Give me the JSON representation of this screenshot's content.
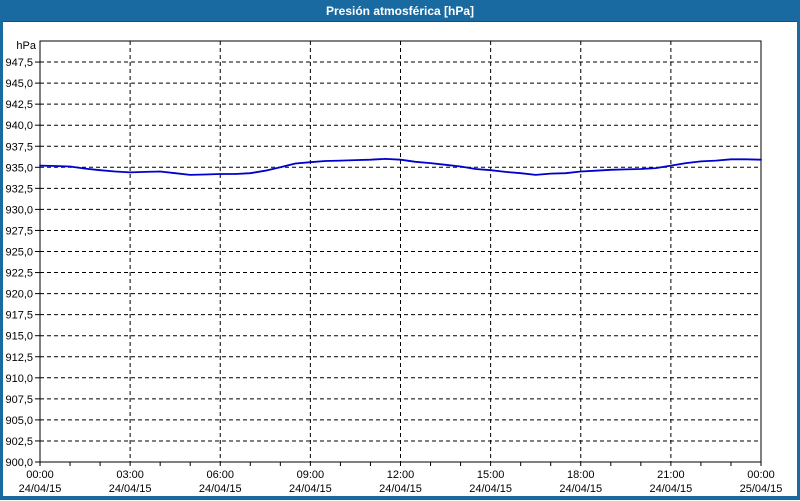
{
  "window": {
    "title": "Presión atmosférica [hPa]"
  },
  "colors": {
    "titlebar_bg": "#1a6aa2",
    "titlebar_text": "#ffffff",
    "border": "#1a6aa2",
    "plot_background": "#ffffff",
    "axis": "#000000",
    "grid": "#000000",
    "label_text": "#000000",
    "line": "#0000cc"
  },
  "chart_data": {
    "type": "line",
    "title": "Presión atmosférica [hPa]",
    "unit_label": "hPa",
    "ylim": [
      900,
      950
    ],
    "ytick_step": 2.5,
    "yticks": [
      {
        "value": 947.5,
        "label": "947,5"
      },
      {
        "value": 945.0,
        "label": "945,0"
      },
      {
        "value": 942.5,
        "label": "942,5"
      },
      {
        "value": 940.0,
        "label": "940,0"
      },
      {
        "value": 937.5,
        "label": "937,5"
      },
      {
        "value": 935.0,
        "label": "935,0"
      },
      {
        "value": 932.5,
        "label": "932,5"
      },
      {
        "value": 930.0,
        "label": "930,0"
      },
      {
        "value": 927.5,
        "label": "927,5"
      },
      {
        "value": 925.0,
        "label": "925,0"
      },
      {
        "value": 922.5,
        "label": "922,5"
      },
      {
        "value": 920.0,
        "label": "920,0"
      },
      {
        "value": 917.5,
        "label": "917,5"
      },
      {
        "value": 915.0,
        "label": "915,0"
      },
      {
        "value": 912.5,
        "label": "912,5"
      },
      {
        "value": 910.0,
        "label": "910,0"
      },
      {
        "value": 907.5,
        "label": "907,5"
      },
      {
        "value": 905.0,
        "label": "905,0"
      },
      {
        "value": 902.5,
        "label": "902,5"
      },
      {
        "value": 900.0,
        "label": "900,0"
      }
    ],
    "x_hours_range": [
      0,
      24
    ],
    "x_minor_tick_hours": 1,
    "xticks": [
      {
        "hour": 0,
        "time": "00:00",
        "date": "24/04/15"
      },
      {
        "hour": 3,
        "time": "03:00",
        "date": "24/04/15"
      },
      {
        "hour": 6,
        "time": "06:00",
        "date": "24/04/15"
      },
      {
        "hour": 9,
        "time": "09:00",
        "date": "24/04/15"
      },
      {
        "hour": 12,
        "time": "12:00",
        "date": "24/04/15"
      },
      {
        "hour": 15,
        "time": "15:00",
        "date": "24/04/15"
      },
      {
        "hour": 18,
        "time": "18:00",
        "date": "24/04/15"
      },
      {
        "hour": 21,
        "time": "21:00",
        "date": "24/04/15"
      },
      {
        "hour": 24,
        "time": "00:00",
        "date": "25/04/15"
      }
    ],
    "grid": true,
    "legend": "none",
    "series": [
      {
        "name": "Presión atmosférica",
        "color": "#0000cc",
        "x_hours": [
          0,
          0.5,
          1,
          1.5,
          2,
          2.5,
          3,
          3.5,
          4,
          4.5,
          5,
          5.5,
          6,
          6.5,
          7,
          7.5,
          8,
          8.5,
          9,
          9.5,
          10,
          10.5,
          11,
          11.5,
          12,
          12.5,
          13,
          13.5,
          14,
          14.5,
          15,
          15.5,
          16,
          16.5,
          17,
          17.5,
          18,
          18.5,
          19,
          19.5,
          20,
          20.5,
          21,
          21.5,
          22,
          22.5,
          23,
          23.5,
          24
        ],
        "values": [
          935.2,
          935.15,
          935.1,
          934.85,
          934.65,
          934.5,
          934.4,
          934.45,
          934.5,
          934.3,
          934.1,
          934.15,
          934.2,
          934.2,
          934.3,
          934.6,
          935.0,
          935.45,
          935.6,
          935.75,
          935.8,
          935.85,
          935.9,
          936.0,
          935.9,
          935.65,
          935.5,
          935.3,
          935.1,
          934.8,
          934.65,
          934.45,
          934.3,
          934.1,
          934.25,
          934.3,
          934.5,
          934.6,
          934.7,
          934.75,
          934.8,
          934.9,
          935.2,
          935.5,
          935.7,
          935.8,
          935.95,
          935.95,
          935.9
        ]
      }
    ]
  }
}
